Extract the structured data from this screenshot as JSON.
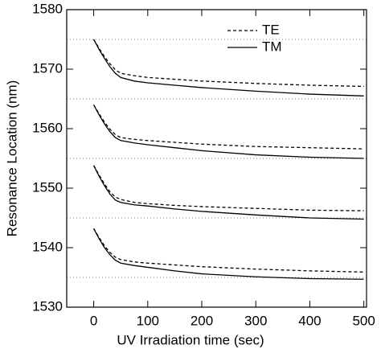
{
  "chart_data": {
    "type": "line",
    "x_label": "UV Irradiation time (sec)",
    "y_label": "Resonance Location (nm)",
    "x": [
      0,
      10,
      20,
      30,
      40,
      50,
      75,
      100,
      150,
      200,
      300,
      400,
      500
    ],
    "xlim": [
      -50,
      505
    ],
    "xticks": [
      0,
      100,
      200,
      300,
      400,
      500
    ],
    "ylim": [
      1530,
      1580
    ],
    "yticks": [
      1530,
      1540,
      1550,
      1560,
      1570,
      1580
    ],
    "ygrid": [
      1535,
      1545,
      1555,
      1565,
      1575
    ],
    "series": [
      {
        "name": "TE",
        "color": "#000",
        "dash": true,
        "values": [
          1575,
          1573.5,
          1572.1,
          1570.9,
          1569.9,
          1569.3,
          1568.9,
          1568.6,
          1568.3,
          1568.0,
          1567.6,
          1567.3,
          1567.1
        ]
      },
      {
        "name": "TM",
        "color": "#000",
        "dash": false,
        "values": [
          1575,
          1573.3,
          1571.8,
          1570.4,
          1569.3,
          1568.6,
          1568.0,
          1567.7,
          1567.3,
          1566.9,
          1566.3,
          1565.8,
          1565.5
        ]
      },
      {
        "name": "TE",
        "color": "#000",
        "dash": true,
        "values": [
          1564,
          1562.5,
          1561.1,
          1559.9,
          1559.0,
          1558.5,
          1558.2,
          1558.0,
          1557.7,
          1557.4,
          1557.0,
          1556.8,
          1556.6
        ]
      },
      {
        "name": "TM",
        "color": "#000",
        "dash": false,
        "values": [
          1564,
          1562.3,
          1560.8,
          1559.5,
          1558.5,
          1558.0,
          1557.6,
          1557.3,
          1556.8,
          1556.3,
          1555.6,
          1555.2,
          1555.0
        ]
      },
      {
        "name": "TE",
        "color": "#000",
        "dash": true,
        "values": [
          1553.8,
          1552.2,
          1550.7,
          1549.4,
          1548.5,
          1548.1,
          1547.6,
          1547.4,
          1547.1,
          1546.9,
          1546.6,
          1546.3,
          1546.2
        ]
      },
      {
        "name": "TM",
        "color": "#000",
        "dash": false,
        "values": [
          1553.8,
          1552.0,
          1550.4,
          1549.0,
          1548.0,
          1547.6,
          1547.2,
          1547.0,
          1546.5,
          1546.1,
          1545.5,
          1545.0,
          1544.8
        ]
      },
      {
        "name": "TE",
        "color": "#000",
        "dash": true,
        "values": [
          1543.2,
          1541.7,
          1540.3,
          1539.2,
          1538.4,
          1538.0,
          1537.6,
          1537.4,
          1537.1,
          1536.8,
          1536.4,
          1536.1,
          1535.9
        ]
      },
      {
        "name": "TM",
        "color": "#000",
        "dash": false,
        "values": [
          1543.2,
          1541.5,
          1540.0,
          1538.8,
          1537.9,
          1537.4,
          1537.0,
          1536.7,
          1536.1,
          1535.6,
          1535.1,
          1534.8,
          1534.7
        ]
      }
    ]
  }
}
